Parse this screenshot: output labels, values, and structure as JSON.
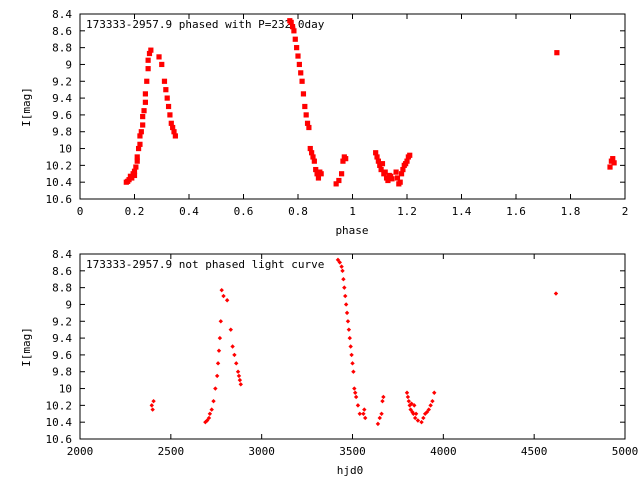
{
  "chart_data": [
    {
      "type": "scatter",
      "title": "173333-2957.9 phased with P=232.0day",
      "xlabel": "phase",
      "ylabel": "I[mag]",
      "xlim": [
        0,
        2
      ],
      "ylim": [
        10.6,
        8.4
      ],
      "y_inverted": true,
      "grid": false,
      "xticks": [
        "0",
        "0.2",
        "0.4",
        "0.6",
        "0.8",
        "1",
        "1.2",
        "1.4",
        "1.6",
        "1.8",
        "2"
      ],
      "yticks": [
        "8.4",
        "8.6",
        "8.8",
        "9",
        "9.2",
        "9.4",
        "9.6",
        "9.8",
        "10",
        "10.2",
        "10.4",
        "10.6"
      ],
      "marker": "filled-square",
      "color": "#ff0000",
      "series": [
        {
          "x": [
            0.17,
            0.175,
            0.18,
            0.185,
            0.19,
            0.195,
            0.2,
            0.2,
            0.205,
            0.21,
            0.21,
            0.215,
            0.22,
            0.22,
            0.225,
            0.23,
            0.23,
            0.235,
            0.24,
            0.24,
            0.245,
            0.25,
            0.25,
            0.255,
            0.26,
            0.29,
            0.3,
            0.31,
            0.315,
            0.32,
            0.325,
            0.33,
            0.335,
            0.34,
            0.345,
            0.35,
            0.77,
            0.775,
            0.78,
            0.785,
            0.79,
            0.795,
            0.8,
            0.805,
            0.81,
            0.815,
            0.82,
            0.825,
            0.83,
            0.835,
            0.84,
            0.845,
            0.85,
            0.855,
            0.86,
            0.865,
            0.87,
            0.875,
            0.88,
            0.885,
            0.94,
            0.95,
            0.96,
            0.965,
            0.97,
            0.975,
            1.085,
            1.09,
            1.095,
            1.1,
            1.105,
            1.11,
            1.115,
            1.12,
            1.125,
            1.13,
            1.135,
            1.14,
            1.145,
            1.16,
            1.165,
            1.17,
            1.175,
            1.18,
            1.185,
            1.19,
            1.195,
            1.2,
            1.205,
            1.21,
            1.75,
            1.945,
            1.95,
            1.955,
            1.96
          ],
          "y": [
            10.4,
            10.39,
            10.37,
            10.33,
            10.35,
            10.3,
            10.27,
            10.32,
            10.22,
            10.1,
            10.15,
            10.0,
            9.95,
            9.85,
            9.8,
            9.72,
            9.62,
            9.55,
            9.45,
            9.35,
            9.2,
            9.05,
            8.95,
            8.87,
            8.83,
            8.91,
            9.0,
            9.2,
            9.3,
            9.4,
            9.5,
            9.6,
            9.7,
            9.75,
            9.8,
            9.85,
            8.48,
            8.5,
            8.55,
            8.6,
            8.7,
            8.8,
            8.9,
            9.0,
            9.1,
            9.2,
            9.35,
            9.5,
            9.6,
            9.7,
            9.75,
            10.0,
            10.05,
            10.1,
            10.15,
            10.25,
            10.3,
            10.35,
            10.28,
            10.3,
            10.42,
            10.38,
            10.3,
            10.15,
            10.1,
            10.12,
            10.05,
            10.1,
            10.15,
            10.2,
            10.25,
            10.18,
            10.3,
            10.28,
            10.35,
            10.38,
            10.32,
            10.33,
            10.36,
            10.28,
            10.35,
            10.42,
            10.4,
            10.3,
            10.25,
            10.2,
            10.18,
            10.15,
            10.1,
            10.08,
            8.86,
            10.22,
            10.15,
            10.12,
            10.17
          ]
        }
      ]
    },
    {
      "type": "scatter",
      "title": "173333-2957.9 not phased light curve",
      "xlabel": "hjd0",
      "ylabel": "I[mag]",
      "xlim": [
        2000,
        5000
      ],
      "ylim": [
        10.6,
        8.4
      ],
      "y_inverted": true,
      "grid": false,
      "xticks": [
        "2000",
        "2500",
        "3000",
        "3500",
        "4000",
        "4500",
        "5000"
      ],
      "yticks": [
        "8.4",
        "8.6",
        "8.8",
        "9",
        "9.2",
        "9.4",
        "9.6",
        "9.8",
        "10",
        "10.2",
        "10.4",
        "10.6"
      ],
      "marker": "filled-diamond",
      "color": "#ff0000",
      "series": [
        {
          "x": [
            2395,
            2400,
            2405,
            2690,
            2700,
            2710,
            2715,
            2725,
            2735,
            2745,
            2755,
            2760,
            2765,
            2770,
            2775,
            2780,
            2790,
            2810,
            2830,
            2840,
            2850,
            2860,
            2870,
            2875,
            2880,
            2885,
            3420,
            3430,
            3440,
            3445,
            3450,
            3455,
            3460,
            3465,
            3470,
            3475,
            3480,
            3485,
            3490,
            3495,
            3500,
            3505,
            3510,
            3515,
            3520,
            3530,
            3540,
            3560,
            3565,
            3570,
            3640,
            3650,
            3660,
            3665,
            3670,
            3800,
            3805,
            3810,
            3815,
            3820,
            3825,
            3830,
            3835,
            3840,
            3845,
            3850,
            3860,
            3880,
            3890,
            3900,
            3910,
            3920,
            3930,
            3940,
            3950,
            4620
          ],
          "y": [
            10.2,
            10.25,
            10.15,
            10.4,
            10.38,
            10.35,
            10.3,
            10.25,
            10.15,
            10.0,
            9.85,
            9.7,
            9.55,
            9.4,
            9.2,
            8.83,
            8.9,
            8.95,
            9.3,
            9.5,
            9.6,
            9.7,
            9.8,
            9.85,
            9.9,
            9.95,
            8.47,
            8.5,
            8.55,
            8.6,
            8.7,
            8.8,
            8.9,
            9.0,
            9.1,
            9.2,
            9.3,
            9.4,
            9.5,
            9.6,
            9.7,
            9.8,
            10.0,
            10.05,
            10.1,
            10.2,
            10.3,
            10.3,
            10.25,
            10.35,
            10.42,
            10.35,
            10.3,
            10.15,
            10.1,
            10.05,
            10.1,
            10.15,
            10.2,
            10.25,
            10.18,
            10.28,
            10.3,
            10.2,
            10.35,
            10.3,
            10.38,
            10.4,
            10.35,
            10.3,
            10.28,
            10.25,
            10.2,
            10.15,
            10.05,
            8.87
          ]
        }
      ]
    }
  ]
}
